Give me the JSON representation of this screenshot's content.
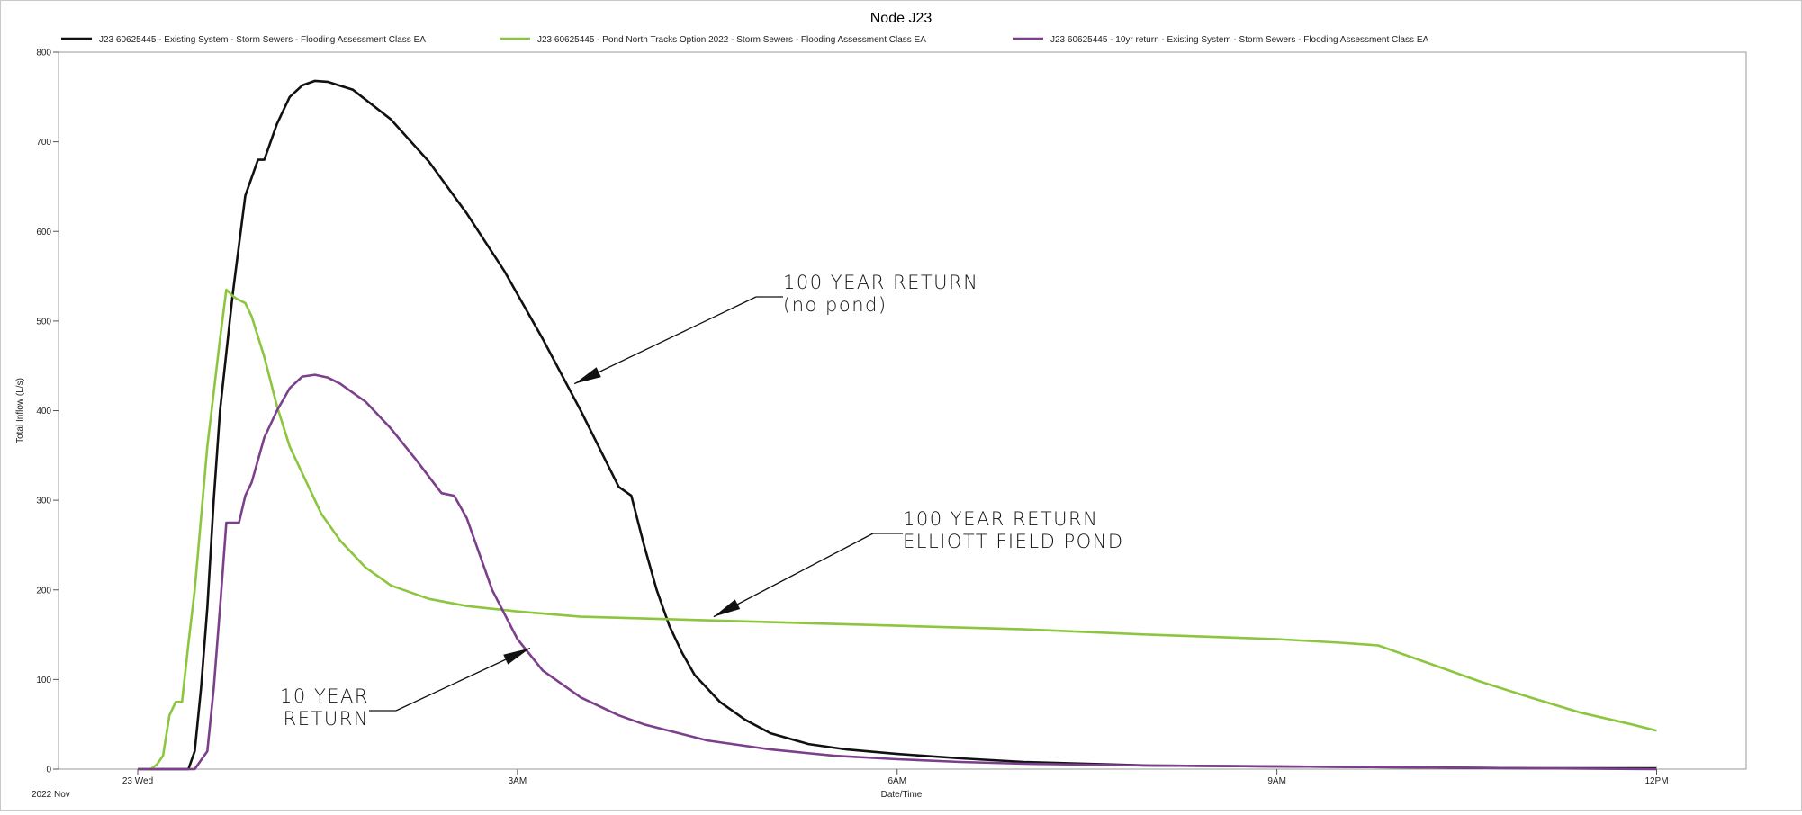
{
  "chart_data": {
    "type": "line",
    "title": "Node J23",
    "xlabel": "Date/Time",
    "ylabel": "Total Inflow (L/s)",
    "date_note": "2022 Nov",
    "x_unit": "hours after 2022-11-23 00:00",
    "xlim": [
      0,
      12
    ],
    "ylim": [
      0,
      800
    ],
    "yticks": [
      0,
      100,
      200,
      300,
      400,
      500,
      600,
      700,
      800
    ],
    "xticks": [
      {
        "x": 0,
        "label": "23 Wed"
      },
      {
        "x": 3,
        "label": "3AM"
      },
      {
        "x": 6,
        "label": "6AM"
      },
      {
        "x": 9,
        "label": "9AM"
      },
      {
        "x": 12,
        "label": "12PM"
      }
    ],
    "grid": false,
    "legend_position": "top",
    "series": [
      {
        "name": "J23 60625445 - Existing System - Storm Sewers - Flooding Assessment Class EA",
        "color": "#111111",
        "x": [
          0.0,
          0.4,
          0.45,
          0.5,
          0.55,
          0.6,
          0.65,
          0.75,
          0.85,
          0.95,
          1.0,
          1.1,
          1.2,
          1.3,
          1.4,
          1.5,
          1.7,
          2.0,
          2.3,
          2.6,
          2.9,
          3.2,
          3.5,
          3.8,
          3.9,
          4.0,
          4.1,
          4.2,
          4.3,
          4.4,
          4.6,
          4.8,
          5.0,
          5.3,
          5.6,
          6.0,
          6.5,
          7.0,
          7.5,
          8.0,
          9.0,
          10.0,
          11.0,
          12.0
        ],
        "y": [
          0,
          0,
          20,
          90,
          180,
          300,
          400,
          530,
          640,
          680,
          680,
          720,
          750,
          763,
          768,
          767,
          758,
          725,
          678,
          620,
          555,
          480,
          400,
          315,
          305,
          250,
          200,
          160,
          130,
          105,
          75,
          55,
          40,
          28,
          22,
          17,
          12,
          8,
          6,
          4,
          3,
          2,
          1,
          1
        ]
      },
      {
        "name": "J23 60625445 - Pond North Tracks Option 2022 - Storm Sewers - Flooding Assessment Class EA",
        "color": "#8cc63f",
        "x": [
          0.0,
          0.1,
          0.15,
          0.2,
          0.25,
          0.3,
          0.35,
          0.4,
          0.45,
          0.55,
          0.65,
          0.7,
          0.75,
          0.78,
          0.85,
          0.9,
          1.0,
          1.1,
          1.2,
          1.3,
          1.45,
          1.6,
          1.8,
          2.0,
          2.3,
          2.6,
          3.0,
          3.5,
          4.0,
          5.0,
          6.0,
          7.0,
          8.0,
          9.0,
          9.5,
          9.8,
          10.2,
          10.6,
          11.0,
          11.4,
          11.8,
          12.0
        ],
        "y": [
          0,
          0,
          5,
          15,
          60,
          75,
          75,
          140,
          200,
          360,
          480,
          535,
          528,
          525,
          520,
          505,
          460,
          405,
          360,
          330,
          285,
          255,
          225,
          205,
          190,
          182,
          176,
          170,
          168,
          164,
          160,
          156,
          150,
          145,
          141,
          138,
          118,
          98,
          80,
          63,
          50,
          43
        ]
      },
      {
        "name": "J23 60625445 - 10yr return - Existing System - Storm Sewers - Flooding Assessment Class EA",
        "color": "#7b3f8c",
        "x": [
          0.0,
          0.45,
          0.55,
          0.6,
          0.65,
          0.7,
          0.75,
          0.8,
          0.85,
          0.9,
          0.95,
          1.0,
          1.1,
          1.2,
          1.3,
          1.4,
          1.5,
          1.6,
          1.8,
          2.0,
          2.2,
          2.4,
          2.5,
          2.6,
          2.8,
          3.0,
          3.2,
          3.5,
          3.8,
          4.0,
          4.5,
          5.0,
          5.5,
          6.0,
          6.5,
          7.0,
          7.5,
          8.0,
          9.0,
          10.0,
          11.0,
          12.0
        ],
        "y": [
          0,
          0,
          20,
          90,
          180,
          275,
          275,
          275,
          305,
          320,
          345,
          370,
          400,
          425,
          438,
          440,
          437,
          430,
          410,
          380,
          345,
          308,
          305,
          280,
          200,
          145,
          110,
          80,
          60,
          50,
          32,
          22,
          15,
          11,
          8,
          6,
          5,
          4,
          3,
          2,
          1,
          0
        ]
      }
    ],
    "annotations": [
      {
        "lines": [
          "100 YEAR RETURN",
          "(no pond)"
        ],
        "points_to": {
          "x": 3.45,
          "y": 430
        }
      },
      {
        "lines": [
          "100 YEAR RETURN",
          "ELLIOTT FIELD POND"
        ],
        "points_to": {
          "x": 4.55,
          "y": 170
        }
      },
      {
        "lines": [
          "10 YEAR",
          "RETURN"
        ],
        "points_to": {
          "x": 3.1,
          "y": 135
        }
      }
    ]
  }
}
